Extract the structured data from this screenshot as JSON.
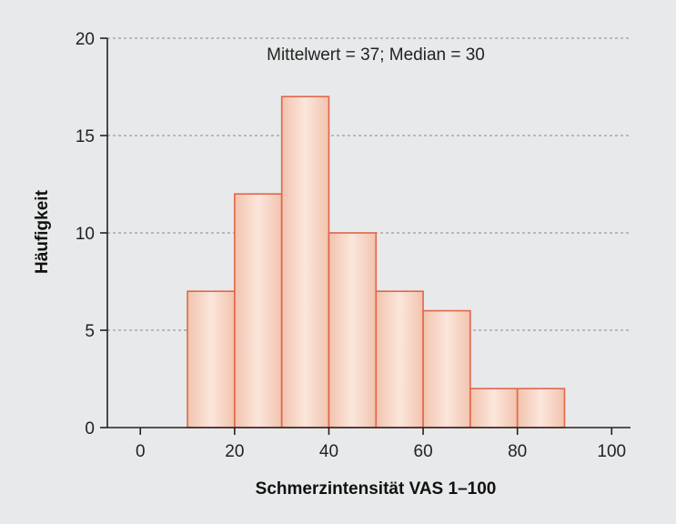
{
  "chart_data": {
    "type": "bar",
    "subtype": "histogram",
    "bins": [
      {
        "start": 10,
        "end": 20,
        "count": 7
      },
      {
        "start": 20,
        "end": 30,
        "count": 12
      },
      {
        "start": 30,
        "end": 40,
        "count": 17
      },
      {
        "start": 40,
        "end": 50,
        "count": 10
      },
      {
        "start": 50,
        "end": 60,
        "count": 7
      },
      {
        "start": 60,
        "end": 70,
        "count": 6
      },
      {
        "start": 70,
        "end": 80,
        "count": 2
      },
      {
        "start": 80,
        "end": 90,
        "count": 2
      }
    ],
    "annotation": "Mittelwert = 37; Median = 30",
    "xlabel": "Schmerzintensität VAS 1–100",
    "ylabel": "Häufigkeit",
    "xlim": [
      -7,
      104
    ],
    "ylim": [
      0,
      20
    ],
    "xticks": [
      "0",
      "20",
      "40",
      "60",
      "80",
      "100"
    ],
    "yticks": [
      "0",
      "5",
      "10",
      "15",
      "20"
    ],
    "grid": "horizontal-dotted",
    "colors": {
      "background": "#e8e9ea",
      "bar_fill_edge": "#f2c3ae",
      "bar_fill_center": "#fbe6dc",
      "bar_stroke": "#e0664a",
      "axis": "#222222",
      "grid": "#9a9a9a"
    }
  }
}
